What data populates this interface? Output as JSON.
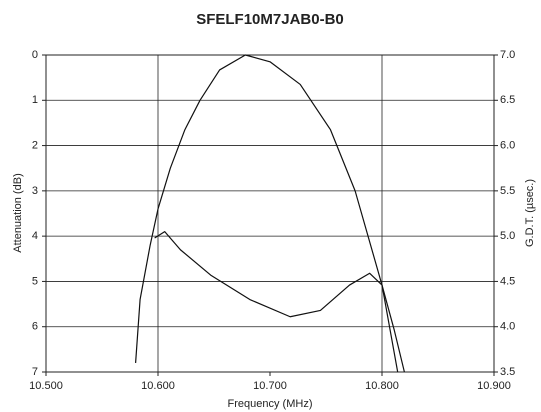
{
  "chart_data": {
    "type": "line",
    "title": "SFELF10M7JAB0-B0",
    "xlabel": "Frequency (MHz)",
    "ylabel": "Attenuation (dB)",
    "y2label": "G.D.T. (µsec.)",
    "xlim": [
      10.5,
      10.9
    ],
    "xticks": [
      {
        "value": 10.5,
        "label": "10.500"
      },
      {
        "value": 10.6,
        "label": "10.600"
      },
      {
        "value": 10.7,
        "label": "10.700"
      },
      {
        "value": 10.8,
        "label": "10.800"
      },
      {
        "value": 10.9,
        "label": "10.900"
      }
    ],
    "x_gridlines": [
      10.6,
      10.8
    ],
    "ylim": [
      7,
      0
    ],
    "yticks": [
      0,
      1,
      2,
      3,
      4,
      5,
      6,
      7
    ],
    "y2lim": [
      3.5,
      7.0
    ],
    "y2ticks": [
      3.5,
      {
        "value": 4.0,
        "label": "4.0"
      },
      4.5,
      {
        "value": 5.0,
        "label": "5.0"
      },
      5.5,
      {
        "value": 6.0,
        "label": "6.0"
      },
      6.5,
      {
        "value": 7.0,
        "label": "7.0"
      }
    ],
    "grid": true,
    "series": [
      {
        "color": "#111111",
        "x": [
          10.58,
          10.584,
          10.593,
          10.6,
          10.611,
          10.624,
          10.6375,
          10.655,
          10.678,
          10.7,
          10.727,
          10.754,
          10.776,
          10.8,
          10.814
        ],
        "values": [
          6.8,
          5.4,
          4.2,
          3.4,
          2.5,
          1.65,
          1.0,
          0.33,
          0,
          0.15,
          0.65,
          1.65,
          3.0,
          5.08,
          7
        ]
      },
      {
        "color": "#111111",
        "axis": "y2",
        "x": [
          10.597,
          10.606,
          10.62,
          10.647,
          10.682,
          10.718,
          10.745,
          10.771,
          10.789,
          10.8,
          10.811,
          10.82
        ],
        "values": [
          4.98,
          5.05,
          4.85,
          4.57,
          4.3,
          4.11,
          4.18,
          4.46,
          4.59,
          4.46,
          3.96,
          3.5
        ]
      }
    ]
  }
}
